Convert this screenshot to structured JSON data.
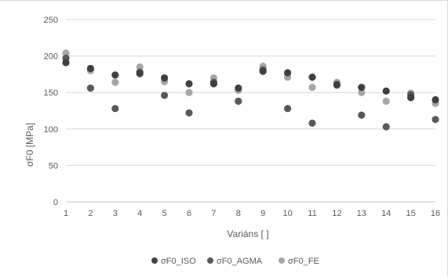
{
  "chart_data": {
    "type": "scatter",
    "xlabel": "Variáns [ ]",
    "ylabel": "σF0 [MPa]",
    "xlim": [
      1,
      16
    ],
    "ylim": [
      0,
      250
    ],
    "x_ticks": [
      1,
      2,
      3,
      4,
      5,
      6,
      7,
      8,
      9,
      10,
      11,
      12,
      13,
      14,
      15,
      16
    ],
    "y_ticks": [
      0,
      50,
      100,
      150,
      200,
      250
    ],
    "grid": "horizontal",
    "legend_position": "bottom",
    "x": [
      1,
      2,
      3,
      4,
      5,
      6,
      7,
      8,
      9,
      10,
      11,
      12,
      13,
      14,
      15,
      16
    ],
    "series": [
      {
        "name": "σF0_ISO",
        "color": "#404040",
        "values": [
          191,
          183,
          174,
          176,
          170,
          162,
          162,
          156,
          179,
          177,
          171,
          161,
          157,
          152,
          143,
          140
        ]
      },
      {
        "name": "σF0_AGMA",
        "color": "#595959",
        "values": [
          197,
          156,
          128,
          178,
          146,
          122,
          164,
          138,
          181,
          128,
          108,
          160,
          119,
          103,
          147,
          113
        ]
      },
      {
        "name": "σF0_FE",
        "color": "#a6a6a6",
        "values": [
          204,
          180,
          164,
          185,
          165,
          150,
          170,
          153,
          186,
          171,
          157,
          164,
          150,
          138,
          149,
          135
        ]
      }
    ]
  }
}
